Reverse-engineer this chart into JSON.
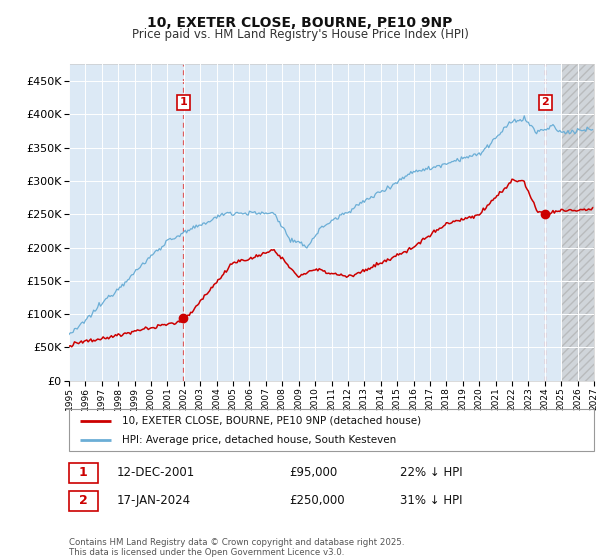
{
  "title": "10, EXETER CLOSE, BOURNE, PE10 9NP",
  "subtitle": "Price paid vs. HM Land Registry's House Price Index (HPI)",
  "legend_line1": "10, EXETER CLOSE, BOURNE, PE10 9NP (detached house)",
  "legend_line2": "HPI: Average price, detached house, South Kesteven",
  "annotation1_date": "12-DEC-2001",
  "annotation1_price": "£95,000",
  "annotation1_hpi": "22% ↓ HPI",
  "annotation2_date": "17-JAN-2024",
  "annotation2_price": "£250,000",
  "annotation2_hpi": "31% ↓ HPI",
  "footnote": "Contains HM Land Registry data © Crown copyright and database right 2025.\nThis data is licensed under the Open Government Licence v3.0.",
  "sale1_year": 2001.96,
  "sale1_price": 95000,
  "sale2_year": 2024.04,
  "sale2_price": 250000,
  "hpi_color": "#6baed6",
  "price_color": "#cc0000",
  "vline_color": "#dd4444",
  "bg_color": "#ffffff",
  "plot_bg_color": "#dce9f5",
  "hatch_bg_color": "#d0d0d0",
  "grid_color": "#ffffff",
  "annotation_box_color": "#cc0000",
  "ylim_min": 0,
  "ylim_max": 475000,
  "xmin": 1995,
  "xmax": 2027,
  "hatch_start": 2025.0
}
